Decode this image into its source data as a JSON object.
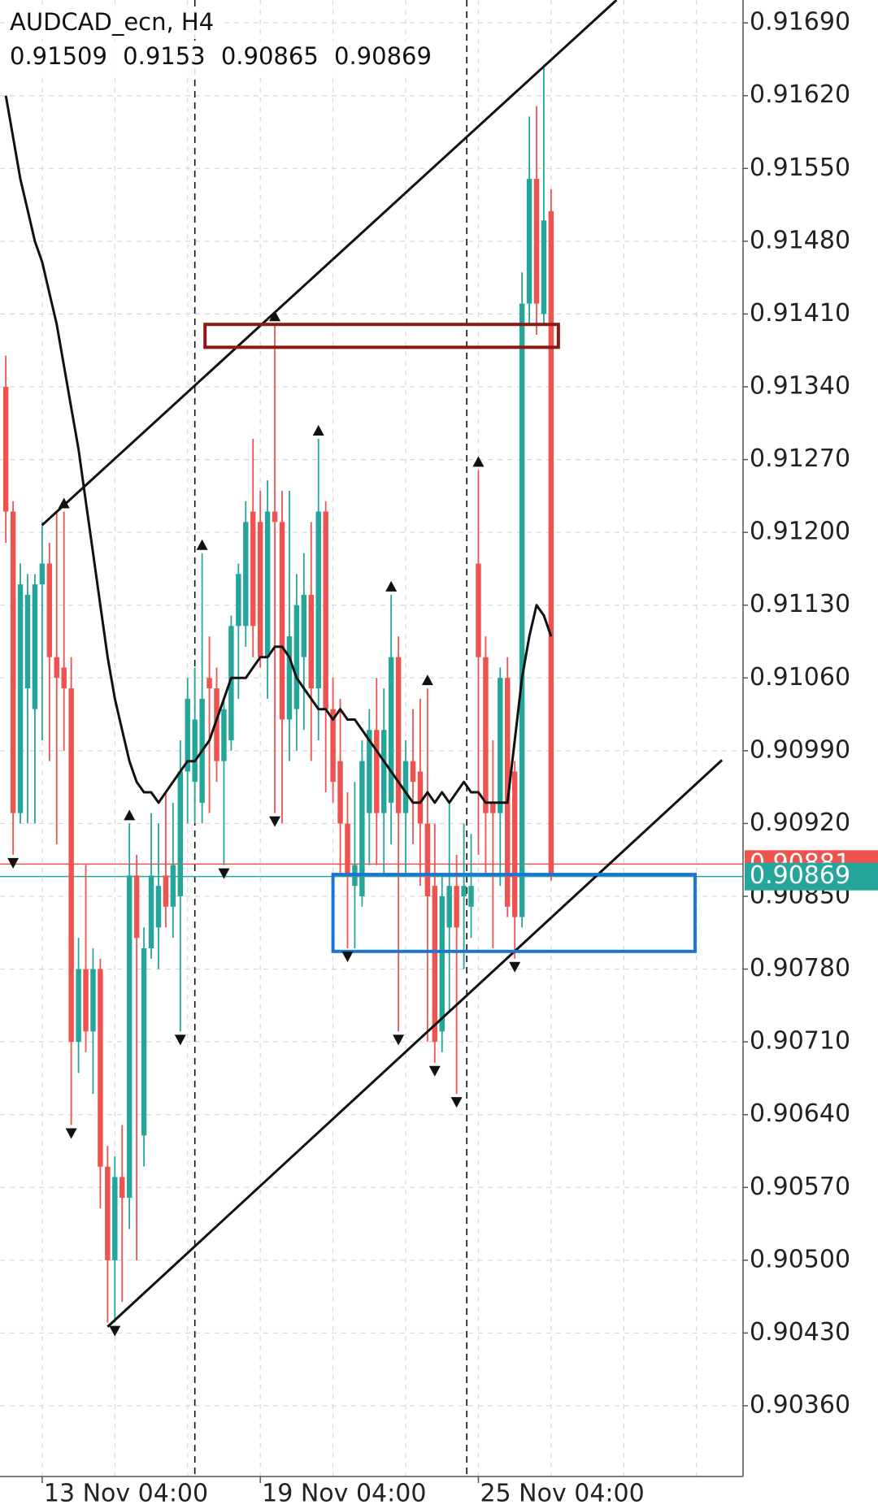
{
  "chart_data": {
    "type": "candlestick",
    "title": "AUDCAD_ecn, H4",
    "categories": [
      null,
      null,
      null,
      null,
      null,
      "13 Nov 04:00",
      null,
      null,
      null,
      null,
      null,
      null,
      null,
      null,
      null,
      null,
      null,
      null,
      null,
      null,
      null,
      null,
      null,
      null,
      null,
      null,
      null,
      null,
      null,
      null,
      null,
      null,
      null,
      null,
      null,
      "19 Nov 04:00",
      null,
      null,
      null,
      null,
      null,
      null,
      null,
      null,
      null,
      null,
      null,
      null,
      null,
      null,
      null,
      null,
      null,
      null,
      null,
      null,
      null,
      null,
      null,
      null,
      null,
      null,
      null,
      null,
      null,
      "25 Nov 04:00",
      null,
      null,
      null,
      null,
      null,
      null,
      null,
      null,
      null,
      null
    ],
    "open": [
      0.9134,
      0.9122,
      0.9093,
      0.9105,
      0.9103,
      0.9115,
      0.9117,
      0.9108,
      0.9107,
      0.9105,
      0.9071,
      0.9078,
      0.9072,
      0.9078,
      0.9059,
      0.905,
      0.9058,
      0.9056,
      0.9087,
      0.9062,
      0.908,
      0.9082,
      0.9087,
      0.9084,
      0.9085,
      0.9097,
      0.9096,
      0.9094,
      0.9106,
      0.9105,
      0.9098,
      0.91,
      0.9111,
      0.9111,
      0.9122,
      0.9121,
      0.9108,
      0.9122,
      0.9121,
      0.9102,
      0.9103,
      0.9108,
      0.9114,
      0.9105,
      0.9122,
      0.9103,
      0.9098,
      0.9092,
      0.9086,
      0.9085,
      0.9093,
      0.9101,
      0.9093,
      0.9094,
      0.9108,
      0.9093,
      0.9098,
      0.9097,
      0.9092,
      0.9086,
      0.9072,
      0.9082,
      0.9086,
      0.9085,
      0.9084,
      0.9117,
      0.9108,
      0.9094,
      0.9093,
      0.9106,
      0.9097,
      0.9083,
      0.9142,
      0.9154,
      0.9141,
      0.91509
    ],
    "high": [
      0.9137,
      0.9123,
      0.9117,
      0.9116,
      0.9116,
      0.9121,
      0.9119,
      0.9122,
      0.9122,
      0.9108,
      0.9081,
      0.9088,
      0.908,
      0.9079,
      0.9061,
      0.906,
      0.9063,
      0.9092,
      0.9089,
      0.9082,
      0.9093,
      0.9092,
      0.9095,
      0.9094,
      0.91,
      0.9106,
      0.9107,
      0.9118,
      0.911,
      0.9107,
      0.9104,
      0.9112,
      0.9117,
      0.9123,
      0.9129,
      0.9124,
      0.9125,
      0.914,
      0.9124,
      0.9124,
      0.9116,
      0.9118,
      0.9121,
      0.9129,
      0.9123,
      0.9106,
      0.9104,
      0.9095,
      0.9096,
      0.91,
      0.9103,
      0.9106,
      0.9105,
      0.9114,
      0.911,
      0.91,
      0.9103,
      0.9104,
      0.9105,
      0.9092,
      0.9087,
      0.9094,
      0.9089,
      0.9092,
      0.9091,
      0.9126,
      0.911,
      0.91,
      0.9107,
      0.9108,
      0.9098,
      0.9145,
      0.916,
      0.9161,
      0.9165,
      0.9153
    ],
    "low": [
      0.9119,
      0.9089,
      0.9092,
      0.9092,
      0.9092,
      0.91,
      0.9098,
      0.909,
      0.9099,
      0.9063,
      0.9068,
      0.907,
      0.9066,
      0.9055,
      0.9044,
      0.9044,
      0.9046,
      0.9053,
      0.905,
      0.9059,
      0.9079,
      0.9078,
      0.9082,
      0.9081,
      0.9072,
      0.9092,
      0.9092,
      0.9092,
      0.9093,
      0.9096,
      0.9088,
      0.9099,
      0.9104,
      0.9109,
      0.9108,
      0.9107,
      0.9104,
      0.9093,
      0.9092,
      0.9098,
      0.9099,
      0.9101,
      0.9098,
      0.91,
      0.9095,
      0.9094,
      0.9087,
      0.908,
      0.908,
      0.9084,
      0.9088,
      0.9088,
      0.9087,
      0.909,
      0.9072,
      0.9087,
      0.909,
      0.9086,
      0.9071,
      0.9069,
      0.907,
      0.9074,
      0.9066,
      0.9078,
      0.9081,
      0.9089,
      0.9087,
      0.908,
      0.9086,
      0.9083,
      0.9079,
      0.9082,
      0.914,
      0.9139,
      0.914,
      0.90865
    ],
    "close": [
      0.9122,
      0.9093,
      0.9115,
      0.9114,
      0.9115,
      0.9117,
      0.9108,
      0.9106,
      0.9105,
      0.9071,
      0.9078,
      0.9072,
      0.9078,
      0.9059,
      0.905,
      0.9058,
      0.9056,
      0.9087,
      0.9081,
      0.908,
      0.9087,
      0.9086,
      0.9084,
      0.9088,
      0.9097,
      0.9104,
      0.9102,
      0.9104,
      0.9105,
      0.9098,
      0.9103,
      0.9111,
      0.9116,
      0.9121,
      0.9111,
      0.9108,
      0.9122,
      0.9121,
      0.9102,
      0.911,
      0.9113,
      0.9114,
      0.9105,
      0.9122,
      0.9103,
      0.9096,
      0.9092,
      0.9087,
      0.9088,
      0.9098,
      0.9101,
      0.9093,
      0.9101,
      0.9108,
      0.9093,
      0.9098,
      0.9096,
      0.9092,
      0.9085,
      0.9071,
      0.9085,
      0.9086,
      0.9082,
      0.9086,
      0.9086,
      0.9108,
      0.9093,
      0.9093,
      0.9106,
      0.9084,
      0.9083,
      0.9142,
      0.9154,
      0.9142,
      0.915,
      0.90869
    ],
    "ma": [
      0.9162,
      0.9158,
      0.9154,
      0.9151,
      0.9148,
      0.9146,
      0.9143,
      0.914,
      0.9136,
      0.9132,
      0.9128,
      0.9123,
      0.9118,
      0.9113,
      0.9108,
      0.9104,
      0.9101,
      0.9098,
      0.9096,
      0.9095,
      0.9095,
      0.9094,
      0.9095,
      0.9096,
      0.9097,
      0.9098,
      0.9098,
      0.9099,
      0.91,
      0.9102,
      0.9104,
      0.9106,
      0.9106,
      0.9106,
      0.9107,
      0.9108,
      0.9108,
      0.9109,
      0.9109,
      0.9108,
      0.9106,
      0.9105,
      0.9104,
      0.9103,
      0.9103,
      0.9102,
      0.9103,
      0.9102,
      0.9102,
      0.9101,
      0.91,
      0.9099,
      0.9098,
      0.9097,
      0.9096,
      0.9095,
      0.9094,
      0.9094,
      0.9095,
      0.9094,
      0.9095,
      0.9094,
      0.9095,
      0.9096,
      0.9095,
      0.9095,
      0.9094,
      0.9094,
      0.9094,
      0.9094,
      0.91,
      0.9106,
      0.911,
      0.9113,
      0.9112,
      0.911
    ],
    "ma_color": "#111111",
    "up_color": "#26a69a",
    "down_color": "#ef5350",
    "fractals_up": [
      8,
      17,
      27,
      37,
      43,
      53,
      58,
      65
    ],
    "fractals_down": [
      1,
      9,
      15,
      24,
      30,
      37,
      47,
      54,
      59,
      62,
      70
    ],
    "xlim": [
      -0.8,
      101.4
    ],
    "xgrid": [
      5,
      15,
      25,
      35,
      45,
      55,
      65,
      75,
      85,
      95
    ],
    "period_separators": [
      26,
      63.4
    ],
    "ylim": [
      0.90292,
      0.91712
    ],
    "yticks": [
      {
        "value": 0.9169,
        "label": "0.91690"
      },
      {
        "value": 0.9162,
        "label": "0.91620"
      },
      {
        "value": 0.9155,
        "label": "0.91550"
      },
      {
        "value": 0.9148,
        "label": "0.91480"
      },
      {
        "value": 0.9141,
        "label": "0.91410"
      },
      {
        "value": 0.9134,
        "label": "0.91340"
      },
      {
        "value": 0.9127,
        "label": "0.91270"
      },
      {
        "value": 0.912,
        "label": "0.91200"
      },
      {
        "value": 0.9113,
        "label": "0.91130"
      },
      {
        "value": 0.9106,
        "label": "0.91060"
      },
      {
        "value": 0.9099,
        "label": "0.90990"
      },
      {
        "value": 0.9092,
        "label": "0.90920"
      },
      {
        "value": 0.9085,
        "label": "0.90850"
      },
      {
        "value": 0.9078,
        "label": "0.90780"
      },
      {
        "value": 0.9071,
        "label": "0.90710"
      },
      {
        "value": 0.9064,
        "label": "0.90640"
      },
      {
        "value": 0.9057,
        "label": "0.90570"
      },
      {
        "value": 0.905,
        "label": "0.90500"
      },
      {
        "value": 0.9043,
        "label": "0.90430"
      },
      {
        "value": 0.9036,
        "label": "0.90360"
      }
    ],
    "grid": true,
    "ask": 0.90881,
    "bid": 0.90869,
    "trendlines": [
      [
        5,
        0.91207,
        84,
        0.91712
      ],
      [
        14,
        0.90436,
        98.5,
        0.90981
      ]
    ],
    "rectangles": [
      {
        "color": "#8b1a10",
        "x": [
          27.4,
          76
        ],
        "y": [
          0.914,
          0.91378
        ]
      },
      {
        "color": "#1976d2",
        "x": [
          45,
          94.8
        ],
        "y": [
          0.90871,
          0.90797
        ]
      }
    ]
  }
}
